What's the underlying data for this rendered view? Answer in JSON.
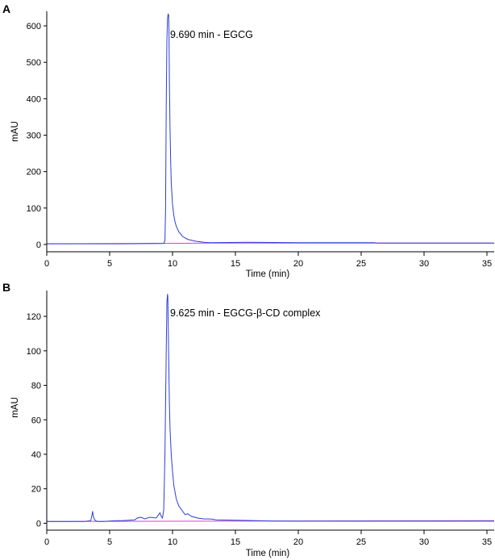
{
  "chart_data": [
    {
      "panel": "A",
      "type": "line",
      "xlabel": "Time (min)",
      "ylabel": "mAU",
      "xlim": [
        0,
        36
      ],
      "ylim": [
        -20,
        640
      ],
      "x_ticks": [
        0,
        5,
        10,
        15,
        20,
        25,
        30,
        35
      ],
      "y_ticks": [
        0,
        100,
        200,
        300,
        400,
        500,
        600
      ],
      "annotation": "9.690 min - EGCG",
      "series": [
        {
          "name": "chromatogram",
          "color": "#2a3fd6",
          "x": [
            0,
            6,
            9.3,
            9.4,
            9.45,
            9.5,
            9.55,
            9.6,
            9.65,
            9.69,
            9.72,
            9.75,
            9.8,
            9.85,
            9.9,
            10.0,
            10.1,
            10.2,
            10.3,
            10.5,
            10.8,
            11.2,
            11.8,
            12.5,
            13.0,
            16.0,
            20,
            26,
            26.3,
            36
          ],
          "y": [
            2,
            2,
            3,
            10,
            100,
            380,
            560,
            620,
            632,
            630,
            590,
            450,
            320,
            230,
            170,
            110,
            80,
            62,
            50,
            35,
            22,
            14,
            9,
            6,
            5,
            6,
            5,
            5,
            4,
            4
          ]
        },
        {
          "name": "baseline",
          "color": "#d63fd6",
          "x": [
            0,
            9.35,
            13.0,
            36
          ],
          "y": [
            2,
            3,
            4,
            4
          ]
        }
      ]
    },
    {
      "panel": "B",
      "type": "line",
      "xlabel": "Time (min)",
      "ylabel": "mAU",
      "xlim": [
        0,
        36
      ],
      "ylim": [
        -4,
        135
      ],
      "x_ticks": [
        0,
        5,
        10,
        15,
        20,
        25,
        30,
        35
      ],
      "y_ticks": [
        0,
        20,
        40,
        60,
        80,
        100,
        120
      ],
      "annotation": "9.625 min - EGCG-β-CD complex",
      "series": [
        {
          "name": "chromatogram",
          "color": "#2a3fd6",
          "x": [
            0,
            3.0,
            3.5,
            3.6,
            3.65,
            3.7,
            3.8,
            4.0,
            4.5,
            5.5,
            6.0,
            7.0,
            7.2,
            7.5,
            7.8,
            8.2,
            8.7,
            8.9,
            9.0,
            9.1,
            9.2,
            9.3,
            9.4,
            9.5,
            9.55,
            9.6,
            9.625,
            9.65,
            9.7,
            9.75,
            9.8,
            9.9,
            10.0,
            10.1,
            10.3,
            10.5,
            10.8,
            11.0,
            11.2,
            11.5,
            12.0,
            12.5,
            13.0,
            13.5,
            16.0,
            18.0,
            20,
            36
          ],
          "y": [
            1,
            1,
            1.5,
            5,
            7,
            4,
            2,
            1,
            1,
            1.5,
            1.5,
            2,
            3,
            3.5,
            2.5,
            3.5,
            3,
            5,
            6,
            4,
            3,
            8,
            40,
            100,
            128,
            133,
            131,
            120,
            95,
            70,
            55,
            40,
            30,
            22,
            14,
            10,
            7,
            5,
            5.5,
            4,
            3,
            2.5,
            2.5,
            2,
            1.6,
            1.3,
            1.2,
            1.2
          ]
        },
        {
          "name": "baseline",
          "color": "#d63fd6",
          "x": [
            0,
            36
          ],
          "y": [
            1,
            1.5
          ]
        }
      ]
    }
  ]
}
